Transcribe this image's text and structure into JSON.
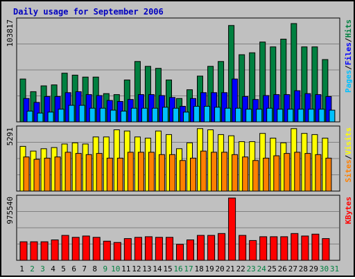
{
  "chart_data": {
    "type": "bar",
    "title": "Daily usage for September 2006",
    "categories": [
      "1",
      "2",
      "3",
      "4",
      "5",
      "6",
      "7",
      "8",
      "9",
      "10",
      "11",
      "12",
      "13",
      "14",
      "15",
      "16",
      "17",
      "18",
      "19",
      "20",
      "21",
      "22",
      "23",
      "24",
      "25",
      "26",
      "27",
      "28",
      "29",
      "30",
      "31"
    ],
    "weekend_days": [
      "2",
      "3",
      "9",
      "10",
      "16",
      "17",
      "23",
      "24",
      "30",
      "31"
    ],
    "panels": [
      {
        "name": "hits_files_pages",
        "max_label": "103817",
        "y_range": [
          0,
          103817
        ],
        "legend": [
          "Pages",
          "Files",
          "Hits"
        ],
        "series": [
          {
            "name": "Hits",
            "color": "#008040",
            "values": [
              44000,
              31000,
              37000,
              38000,
              50000,
              48000,
              46000,
              46000,
              29000,
              28000,
              43000,
              62000,
              57000,
              55000,
              43000,
              24000,
              33000,
              47000,
              57000,
              62000,
              99000,
              69000,
              71000,
              82000,
              77000,
              85000,
              101000,
              77000,
              77000,
              64000,
              0
            ]
          },
          {
            "name": "Files",
            "color": "#0000ff",
            "values": [
              24000,
              20000,
              26000,
              26000,
              30000,
              31000,
              28000,
              27000,
              22000,
              21000,
              23000,
              28000,
              28000,
              27000,
              25000,
              16000,
              24000,
              30000,
              30000,
              30000,
              44000,
              26000,
              23000,
              27000,
              28000,
              28000,
              32000,
              29000,
              28000,
              26000,
              0
            ]
          },
          {
            "name": "Pages",
            "color": "#00c0ff",
            "values": [
              11000,
              9000,
              10000,
              13000,
              17000,
              17000,
              14000,
              14000,
              12000,
              11000,
              14000,
              14000,
              14000,
              15000,
              14000,
              10000,
              16000,
              16000,
              15000,
              14000,
              14000,
              13000,
              13000,
              14000,
              13000,
              13000,
              13000,
              13000,
              13000,
              12000,
              0
            ]
          }
        ]
      },
      {
        "name": "visits_sites",
        "max_label": "5291",
        "y_range": [
          0,
          5291
        ],
        "legend": [
          "Sites",
          "Visits"
        ],
        "series": [
          {
            "name": "Visits",
            "color": "#ffff00",
            "values": [
              3800,
              3400,
              3600,
              3700,
              4000,
              4100,
              4000,
              4600,
              4600,
              5200,
              5100,
              4600,
              4500,
              5100,
              4800,
              3600,
              4100,
              5300,
              5200,
              4800,
              4700,
              4200,
              4200,
              4900,
              4500,
              4100,
              5300,
              4900,
              4800,
              4500,
              0
            ]
          },
          {
            "name": "Sites",
            "color": "#ff8000",
            "values": [
              2900,
              2700,
              2800,
              2900,
              3300,
              3200,
              3100,
              3200,
              2800,
              2800,
              3300,
              3300,
              3300,
              3100,
              3100,
              2600,
              2800,
              3400,
              3300,
              3300,
              3100,
              2900,
              2600,
              2800,
              3000,
              3200,
              3300,
              3200,
              3100,
              2800,
              0
            ]
          }
        ]
      },
      {
        "name": "kbytes",
        "max_label": "975540",
        "y_range": [
          0,
          975540
        ],
        "legend": [
          "KBytes"
        ],
        "series": [
          {
            "name": "KBytes",
            "color": "#ff0000",
            "values": [
              290000,
              290000,
              290000,
              320000,
              390000,
              360000,
              380000,
              360000,
              300000,
              280000,
              340000,
              360000,
              370000,
              360000,
              360000,
              250000,
              320000,
              390000,
              390000,
              420000,
              975540,
              390000,
              310000,
              370000,
              370000,
              370000,
              420000,
              380000,
              410000,
              340000,
              0
            ]
          }
        ]
      }
    ]
  }
}
